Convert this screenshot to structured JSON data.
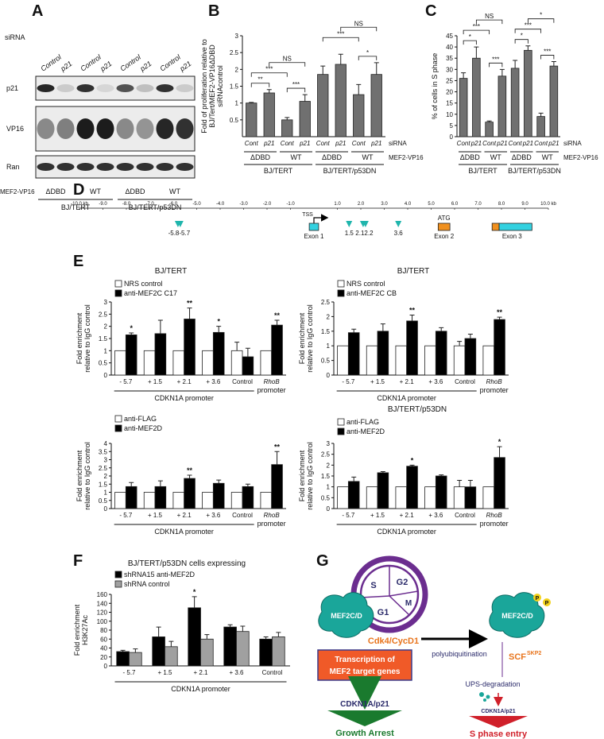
{
  "panel_labels": [
    "A",
    "B",
    "C",
    "D",
    "E",
    "F",
    "G"
  ],
  "panel_a": {
    "sirna_label": "siRNA",
    "lanes": [
      "Control",
      "p21",
      "Control",
      "p21",
      "Control",
      "p21",
      "Control",
      "p21"
    ],
    "rows": [
      "p21",
      "VP16",
      "Ran"
    ],
    "construct_label": "MEF2-VP16",
    "constructs": [
      "ΔDBD",
      "WT",
      "ΔDBD",
      "WT"
    ],
    "cell_lines": [
      "BJ/TERT",
      "BJ/TERT/p53DN"
    ]
  },
  "chart_data": [
    {
      "type": "bar",
      "ylabel": [
        "Fold of proliferation relative to",
        "BJ/Tert/MEF2-VP16ΔDBD",
        "siRNAcontrol"
      ],
      "categories": [
        "Cont",
        "p21",
        "Cont",
        "p21",
        "Cont",
        "p21",
        "Cont",
        "p21"
      ],
      "series": [
        {
          "color": "#707070",
          "values": [
            1.0,
            1.3,
            0.5,
            1.05,
            1.85,
            2.15,
            1.25,
            1.85
          ],
          "errors": [
            0.02,
            0.1,
            0.07,
            0.2,
            0.25,
            0.3,
            0.3,
            0.35
          ]
        }
      ],
      "ylim": [
        0,
        3
      ],
      "yticks": [
        0.5,
        1,
        1.5,
        2,
        2.5,
        3
      ],
      "groups": [
        "ΔDBD",
        "WT",
        "ΔDBD",
        "WT"
      ],
      "cell_lines": [
        "BJ/TERT",
        "BJ/TERT/p53DN"
      ],
      "row_labels": [
        "siRNA",
        "MEF2-VP16"
      ],
      "significance": [
        "**",
        "***",
        "***",
        "NS",
        "***",
        "*",
        "NS"
      ]
    },
    {
      "type": "bar",
      "ylabel": [
        "% of cells in S phase"
      ],
      "categories": [
        "Cont",
        "p21",
        "Cont",
        "p21",
        "Cont",
        "p21",
        "Cont",
        "p21"
      ],
      "series": [
        {
          "color": "#707070",
          "values": [
            26,
            35,
            6.5,
            27,
            30.5,
            38.5,
            9,
            31.5
          ],
          "errors": [
            2.5,
            5,
            0.5,
            3,
            3.5,
            2,
            1.5,
            2
          ]
        }
      ],
      "ylim": [
        0,
        45
      ],
      "yticks": [
        0,
        5,
        10,
        15,
        20,
        25,
        30,
        35,
        40,
        45
      ],
      "groups": [
        "ΔDBD",
        "WT",
        "ΔDBD",
        "WT"
      ],
      "cell_lines": [
        "BJ/TERT",
        "BJ/TERT/p53DN"
      ],
      "row_labels": [
        "siRNA",
        "MEF2-VP16"
      ],
      "significance": [
        "*",
        "***",
        "***",
        "NS",
        "*",
        "***",
        "***",
        "*"
      ]
    },
    {
      "type": "track",
      "xlim": [
        -10,
        10
      ],
      "xticks": [
        {
          "value": -10,
          "label": "-10.0 kb"
        },
        {
          "value": -9,
          "label": "-9.0"
        },
        {
          "value": -8,
          "label": "-8.0"
        },
        {
          "value": -7,
          "label": "-7.0"
        },
        {
          "value": -6,
          "label": "-6.0"
        },
        {
          "value": -5,
          "label": "-5.0"
        },
        {
          "value": -4,
          "label": "-4.0"
        },
        {
          "value": -3,
          "label": "-3.0"
        },
        {
          "value": -2,
          "label": "-2.0"
        },
        {
          "value": -1,
          "label": "-1.0"
        },
        {
          "value": 1,
          "label": "1.0"
        },
        {
          "value": 2,
          "label": "2.0"
        },
        {
          "value": 3,
          "label": "3.0"
        },
        {
          "value": 4,
          "label": "4.0"
        },
        {
          "value": 5,
          "label": "5.0"
        },
        {
          "value": 6,
          "label": "6.0"
        },
        {
          "value": 7,
          "label": "7.0"
        },
        {
          "value": 8,
          "label": "8.0"
        },
        {
          "value": 9,
          "label": "9.0"
        },
        {
          "value": 10,
          "label": "10.0 kb"
        }
      ],
      "sites": [
        -5.8,
        -5.7,
        1.5,
        2.1,
        2.2,
        3.6
      ],
      "tss": {
        "label": "TSS",
        "x": 0
      },
      "exons": [
        {
          "label": "Exon 1",
          "segments": [
            {
              "start": -0.2,
              "end": 0.2,
              "color": "#33d1e0"
            }
          ]
        },
        {
          "label": "Exon 2",
          "marker": "ATG",
          "segments": [
            {
              "start": 5.3,
              "end": 5.8,
              "color": "#f0901e"
            }
          ]
        },
        {
          "label": "Exon 3",
          "segments": [
            {
              "start": 7.6,
              "end": 7.9,
              "color": "#f0901e"
            },
            {
              "start": 7.9,
              "end": 9.3,
              "color": "#33d1e0"
            }
          ]
        }
      ]
    },
    {
      "type": "bar",
      "title": "BJ/TERT",
      "ylabel": [
        "Fold enrichment",
        "relative to IgG control"
      ],
      "categories": [
        "- 5.7",
        "+ 1.5",
        "+ 2.1",
        "+ 3.6",
        "Control",
        "RhoB"
      ],
      "xlabel": "CDKN1A promoter",
      "xlabel2": "promoter",
      "series": [
        {
          "name": "NRS control",
          "color": "#ffffff",
          "values": [
            1,
            1,
            1,
            1,
            1,
            1
          ],
          "errors": [
            null,
            null,
            null,
            null,
            0.35,
            null
          ]
        },
        {
          "name": "anti-MEF2C C17",
          "color": "#000000",
          "values": [
            1.65,
            1.7,
            2.3,
            1.75,
            0.75,
            2.05
          ],
          "errors": [
            0.08,
            0.55,
            0.45,
            0.25,
            0.35,
            0.2
          ]
        }
      ],
      "ylim": [
        0,
        3
      ],
      "yticks": [
        0,
        0.5,
        1,
        1.5,
        2,
        2.5,
        3
      ],
      "significance": [
        "*",
        null,
        "**",
        "*",
        null,
        "**"
      ]
    },
    {
      "type": "bar",
      "title": "BJ/TERT",
      "ylabel": [
        "Fold enrichment",
        "relative to IgG control"
      ],
      "categories": [
        "- 5.7",
        "+ 1.5",
        "+ 2.1",
        "+ 3.6",
        "Control",
        "RhoB"
      ],
      "xlabel": "CDKN1A promoter",
      "xlabel2": "promoter",
      "series": [
        {
          "name": "NRS control",
          "color": "#ffffff",
          "values": [
            1,
            1,
            1,
            1,
            1,
            1
          ],
          "errors": [
            null,
            null,
            null,
            null,
            0.15,
            null
          ]
        },
        {
          "name": "anti-MEF2C CB",
          "color": "#000000",
          "values": [
            1.45,
            1.5,
            1.85,
            1.5,
            1.25,
            1.9
          ],
          "errors": [
            0.12,
            0.25,
            0.2,
            0.12,
            0.15,
            0.08
          ]
        }
      ],
      "ylim": [
        0,
        2.5
      ],
      "yticks": [
        0,
        0.5,
        1,
        1.5,
        2,
        2.5
      ],
      "significance": [
        null,
        null,
        "**",
        null,
        null,
        "**"
      ]
    },
    {
      "type": "bar",
      "ylabel": [
        "Fold enrichment",
        "relative to IgG control"
      ],
      "categories": [
        "- 5.7",
        "+ 1.5",
        "+ 2.1",
        "+ 3.6",
        "Control",
        "RhoB"
      ],
      "xlabel": "CDKN1A promoter",
      "xlabel2": "promoter",
      "series": [
        {
          "name": "anti-FLAG",
          "color": "#ffffff",
          "values": [
            1,
            1,
            1,
            1,
            1,
            1
          ]
        },
        {
          "name": "anti-MEF2D",
          "color": "#000000",
          "values": [
            1.35,
            1.35,
            1.85,
            1.55,
            1.35,
            2.7
          ],
          "errors": [
            0.25,
            0.35,
            0.2,
            0.2,
            0.15,
            0.8
          ]
        }
      ],
      "ylim": [
        0,
        4
      ],
      "yticks": [
        0,
        0.5,
        1,
        1.5,
        2,
        2.5,
        3,
        3.5,
        4
      ],
      "significance": [
        null,
        null,
        "**",
        null,
        null,
        "**"
      ]
    },
    {
      "type": "bar",
      "title": "BJ/TERT/p53DN",
      "ylabel": [
        "Fold enrichment",
        "relative to IgG control"
      ],
      "categories": [
        "- 5.7",
        "+ 1.5",
        "+ 2.1",
        "+ 3.6",
        "Control",
        "RhoB"
      ],
      "xlabel": "CDKN1A promoter",
      "xlabel2": "promoter",
      "series": [
        {
          "name": "anti-FLAG",
          "color": "#ffffff",
          "values": [
            1,
            1,
            1,
            1,
            1,
            1
          ],
          "errors": [
            null,
            null,
            null,
            null,
            0.3,
            null
          ]
        },
        {
          "name": "anti-MEF2D",
          "color": "#000000",
          "values": [
            1.25,
            1.65,
            1.95,
            1.5,
            1.0,
            2.35
          ],
          "errors": [
            0.2,
            0.05,
            0.05,
            0.05,
            0.3,
            0.5
          ]
        }
      ],
      "ylim": [
        0,
        3
      ],
      "yticks": [
        0,
        0.5,
        1,
        1.5,
        2,
        2.5,
        3
      ],
      "significance": [
        null,
        null,
        "*",
        null,
        null,
        "*"
      ]
    },
    {
      "type": "bar",
      "title": "BJ/TERT/p53DN cells expressing",
      "ylabel": [
        "Fold enrichment",
        "H3K27Ac"
      ],
      "categories": [
        "- 5.7",
        "+ 1.5",
        "+ 2.1",
        "+ 3.6",
        "Control"
      ],
      "xlabel": "CDKN1A promoter",
      "series": [
        {
          "name": "shRNA15 anti-MEF2D",
          "color": "#000000",
          "values": [
            32,
            65,
            130,
            87,
            60
          ],
          "errors": [
            3,
            22,
            25,
            5,
            5
          ]
        },
        {
          "name": "shRNA control",
          "color": "#a0a0a0",
          "values": [
            30,
            43,
            60,
            77,
            65
          ],
          "errors": [
            8,
            12,
            10,
            12,
            10
          ]
        }
      ],
      "ylim": [
        0,
        160
      ],
      "yticks": [
        0,
        20,
        40,
        60,
        80,
        100,
        120,
        140,
        160
      ],
      "significance": [
        null,
        null,
        "*",
        null,
        null
      ]
    }
  ],
  "panel_g": {
    "phases": [
      "S",
      "G2",
      "M",
      "G1"
    ],
    "protein": [
      "MEF2C/D",
      "MEF2C/D"
    ],
    "phospho": [
      "P",
      "P"
    ],
    "kinase": "Cdk4/CycD1",
    "box": [
      "Transcription of",
      "MEF2 target genes"
    ],
    "ubiquitination": "polyubiquitination",
    "ligase": "SCF",
    "ligase_sup": "SKP2",
    "degradation": "UPS-degradation",
    "target": [
      "CDKN1A/p21",
      "CDKN1A/p21"
    ],
    "outcomes": [
      "Growth Arrest",
      "S phase entry"
    ]
  }
}
